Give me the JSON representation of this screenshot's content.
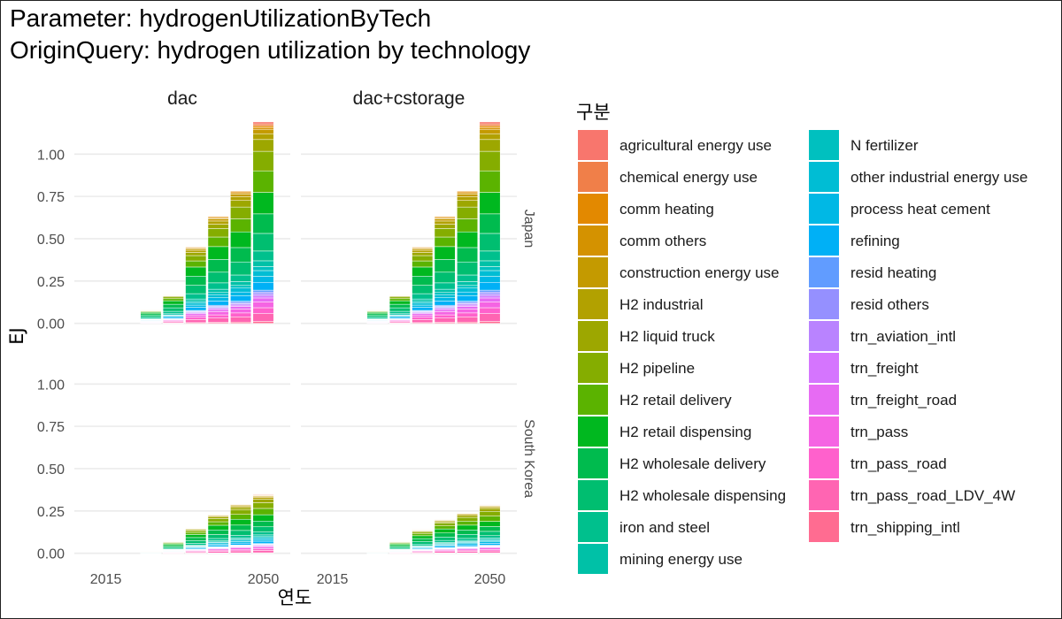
{
  "chart_data": {
    "type": "bar",
    "stacked": true,
    "title": "Parameter: hydrogenUtilizationByTech",
    "subtitle": "OriginQuery: hydrogen utilization by technology",
    "xlabel": "연도",
    "ylabel": "EJ",
    "facet_columns": [
      "dac",
      "dac+cstorage"
    ],
    "facet_rows": [
      "Japan",
      "South Korea"
    ],
    "x": [
      2025,
      2030,
      2035,
      2040,
      2045,
      2050
    ],
    "xlim": [
      2008,
      2056
    ],
    "x_ticks": [
      2015,
      2050
    ],
    "ylim": [
      -0.08,
      1.2
    ],
    "y_ticks": [
      0.0,
      0.25,
      0.5,
      0.75,
      1.0
    ],
    "y_tick_labels": [
      "0.00",
      "0.25",
      "0.50",
      "0.75",
      "1.00"
    ],
    "grid": true,
    "legend_title": "구분",
    "legend_position": "right",
    "series": [
      {
        "name": "agricultural energy use",
        "color": "#F8766D"
      },
      {
        "name": "chemical energy use",
        "color": "#F07F49"
      },
      {
        "name": "comm heating",
        "color": "#E38900"
      },
      {
        "name": "comm others",
        "color": "#D49200"
      },
      {
        "name": "construction energy use",
        "color": "#C49A00"
      },
      {
        "name": "H2 industrial",
        "color": "#B2A100"
      },
      {
        "name": "H2 liquid truck",
        "color": "#9DA700"
      },
      {
        "name": "H2 pipeline",
        "color": "#85AD00"
      },
      {
        "name": "H2 retail delivery",
        "color": "#5BB300"
      },
      {
        "name": "H2 retail dispensing",
        "color": "#00B81F"
      },
      {
        "name": "H2 wholesale delivery",
        "color": "#00BB4E"
      },
      {
        "name": "H2 wholesale dispensing",
        "color": "#00BE70"
      },
      {
        "name": "iron and steel",
        "color": "#00C08D"
      },
      {
        "name": "mining energy use",
        "color": "#00C1A7"
      },
      {
        "name": "N fertilizer",
        "color": "#00C0BF"
      },
      {
        "name": "other industrial energy use",
        "color": "#00BDD4"
      },
      {
        "name": "process heat cement",
        "color": "#00B8E5"
      },
      {
        "name": "refining",
        "color": "#00B0F6"
      },
      {
        "name": "resid heating",
        "color": "#619CFF"
      },
      {
        "name": "resid others",
        "color": "#9590FF"
      },
      {
        "name": "trn_aviation_intl",
        "color": "#B983FF"
      },
      {
        "name": "trn_freight",
        "color": "#D575FE"
      },
      {
        "name": "trn_freight_road",
        "color": "#E76BF3"
      },
      {
        "name": "trn_pass",
        "color": "#F564E3"
      },
      {
        "name": "trn_pass_road",
        "color": "#FF61CC"
      },
      {
        "name": "trn_pass_road_LDV_4W",
        "color": "#FF65B2"
      },
      {
        "name": "trn_shipping_intl",
        "color": "#FF6C91"
      }
    ],
    "panels": [
      {
        "column": "dac",
        "row": "Japan",
        "totals": [
          0.08,
          0.17,
          0.45,
          0.63,
          0.78,
          1.19
        ]
      },
      {
        "column": "dac+cstorage",
        "row": "Japan",
        "totals": [
          0.08,
          0.17,
          0.45,
          0.63,
          0.78,
          1.19
        ]
      },
      {
        "column": "dac",
        "row": "South Korea",
        "totals": [
          0.01,
          0.07,
          0.15,
          0.23,
          0.29,
          0.35
        ]
      },
      {
        "column": "dac+cstorage",
        "row": "South Korea",
        "totals": [
          0.01,
          0.07,
          0.14,
          0.2,
          0.24,
          0.29
        ]
      }
    ],
    "composition": {
      "2025": [
        0,
        0,
        0.01,
        0.01,
        0.01,
        0.02,
        0.03,
        0.05,
        0.05,
        0.1,
        0.12,
        0.12,
        0.1,
        0.05,
        0.02,
        0.03,
        0.03,
        0.04,
        0.02,
        0.02,
        0.02,
        0.02,
        0.03,
        0.02,
        0.02,
        0.03,
        0
      ],
      "2030": [
        0,
        0,
        0.01,
        0.01,
        0.01,
        0.02,
        0.03,
        0.06,
        0.07,
        0.12,
        0.12,
        0.12,
        0.08,
        0.04,
        0.02,
        0.03,
        0.03,
        0.04,
        0.01,
        0.01,
        0.01,
        0.01,
        0.02,
        0.03,
        0.03,
        0.04,
        0.01
      ],
      "2035": [
        0,
        0,
        0.01,
        0.01,
        0.02,
        0.03,
        0.04,
        0.07,
        0.08,
        0.12,
        0.12,
        0.11,
        0.07,
        0.03,
        0.02,
        0.03,
        0.03,
        0.04,
        0.01,
        0.01,
        0.01,
        0.01,
        0.02,
        0.03,
        0.03,
        0.04,
        0.01
      ],
      "2040": [
        0,
        0,
        0.01,
        0.01,
        0.02,
        0.03,
        0.04,
        0.08,
        0.09,
        0.12,
        0.12,
        0.1,
        0.06,
        0.03,
        0.02,
        0.03,
        0.03,
        0.04,
        0.01,
        0.01,
        0.01,
        0.01,
        0.02,
        0.03,
        0.03,
        0.04,
        0.01
      ],
      "2045": [
        0,
        0,
        0.01,
        0.01,
        0.02,
        0.03,
        0.05,
        0.09,
        0.1,
        0.12,
        0.11,
        0.1,
        0.05,
        0.03,
        0.02,
        0.03,
        0.03,
        0.04,
        0.01,
        0.01,
        0.01,
        0.01,
        0.02,
        0.03,
        0.03,
        0.04,
        0.01
      ],
      "2050": [
        0.01,
        0.01,
        0.01,
        0.01,
        0.02,
        0.03,
        0.06,
        0.1,
        0.11,
        0.11,
        0.1,
        0.09,
        0.05,
        0.03,
        0.02,
        0.03,
        0.03,
        0.04,
        0.01,
        0.01,
        0.01,
        0.01,
        0.02,
        0.03,
        0.03,
        0.04,
        0.01
      ]
    }
  }
}
